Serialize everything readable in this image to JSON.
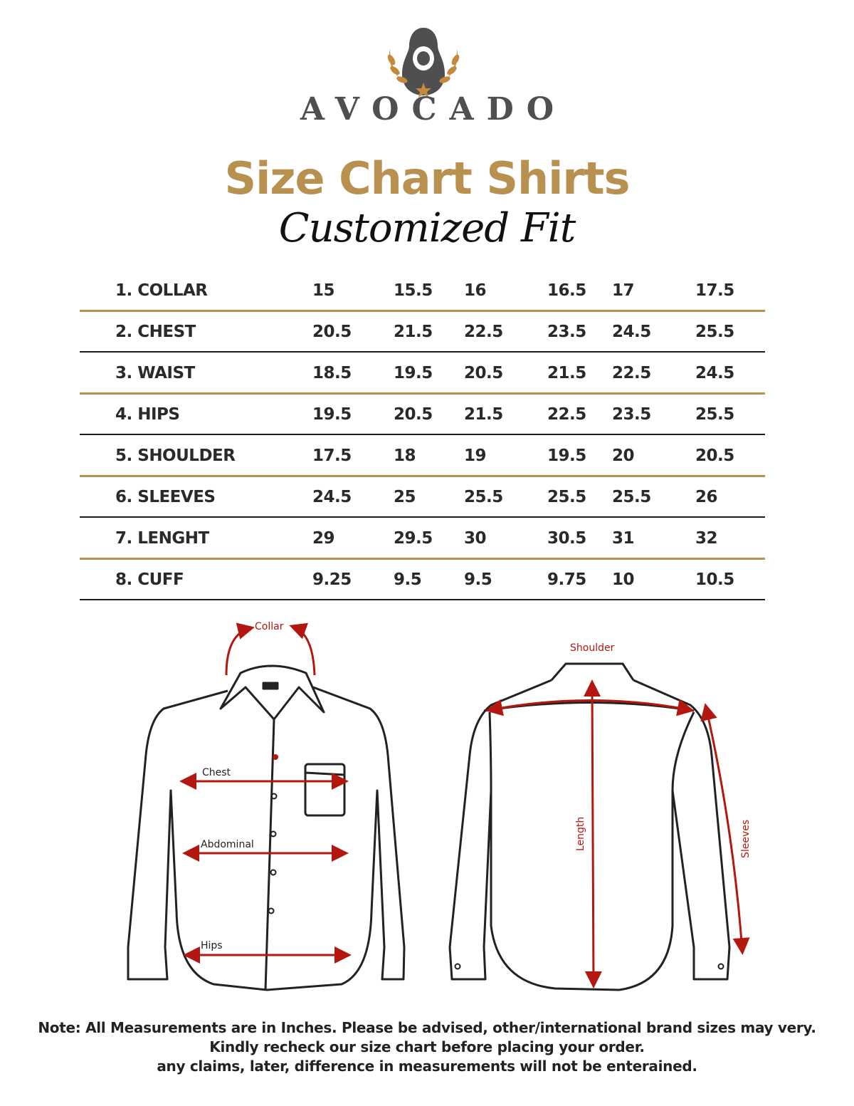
{
  "brand": {
    "name": "AVOCADO",
    "colors": {
      "logo_gray": "#4f4f52",
      "gold": "#b8904f"
    }
  },
  "header": {
    "title": "Size Chart Shirts",
    "subtitle": "Customized Fit"
  },
  "table": {
    "rows": [
      {
        "label": "1. COLLAR",
        "values": [
          "15",
          "15.5",
          "16",
          "16.5",
          "17",
          "17.5"
        ]
      },
      {
        "label": "2. CHEST",
        "values": [
          "20.5",
          "21.5",
          "22.5",
          "23.5",
          "24.5",
          "25.5"
        ]
      },
      {
        "label": "3. WAIST",
        "values": [
          "18.5",
          "19.5",
          "20.5",
          "21.5",
          "22.5",
          "24.5"
        ]
      },
      {
        "label": "4. HIPS",
        "values": [
          "19.5",
          "20.5",
          "21.5",
          "22.5",
          "23.5",
          "25.5"
        ]
      },
      {
        "label": "5. SHOULDER",
        "values": [
          "17.5",
          "18",
          "19",
          "19.5",
          "20",
          "20.5"
        ]
      },
      {
        "label": "6. SLEEVES",
        "values": [
          "24.5",
          "25",
          "25.5",
          "25.5",
          "25.5",
          "26"
        ]
      },
      {
        "label": "7. LENGHT",
        "values": [
          "29",
          "29.5",
          "30",
          "30.5",
          "31",
          "32"
        ]
      },
      {
        "label": "8. CUFF",
        "values": [
          "9.25",
          "9.5",
          "9.5",
          "9.75",
          "10",
          "10.5"
        ]
      }
    ]
  },
  "diagram": {
    "front_labels": {
      "collar": "Collar",
      "chest": "Chest",
      "abdominal": "Abdominal",
      "hips": "Hips"
    },
    "back_labels": {
      "shoulder": "Shoulder",
      "length": "Length",
      "sleeves": "Sleeves"
    },
    "arrow_color": "#b3170f"
  },
  "notes": [
    "Note: All Measurements are in Inches. Please be advised, other/international brand sizes may very.",
    "Kindly recheck our size chart before placing your order.",
    "any claims, later, difference in measurements will not be enterained."
  ]
}
